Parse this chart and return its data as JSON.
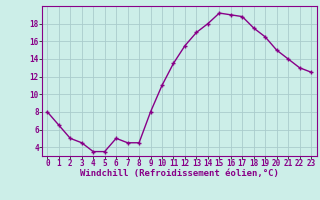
{
  "x": [
    0,
    1,
    2,
    3,
    4,
    5,
    6,
    7,
    8,
    9,
    10,
    11,
    12,
    13,
    14,
    15,
    16,
    17,
    18,
    19,
    20,
    21,
    22,
    23
  ],
  "y": [
    8,
    6.5,
    5,
    4.5,
    3.5,
    3.5,
    5,
    4.5,
    4.5,
    8,
    11,
    13.5,
    15.5,
    17,
    18,
    19.2,
    19,
    18.8,
    17.5,
    16.5,
    15,
    14,
    13,
    12.5
  ],
  "line_color": "#880088",
  "marker": "+",
  "bg_color": "#cceee8",
  "grid_color": "#aacccc",
  "xlabel": "Windchill (Refroidissement éolien,°C)",
  "font_color": "#880088",
  "xlim": [
    -0.5,
    23.5
  ],
  "ylim": [
    3,
    20
  ],
  "yticks": [
    4,
    6,
    8,
    10,
    12,
    14,
    16,
    18
  ],
  "xticks": [
    0,
    1,
    2,
    3,
    4,
    5,
    6,
    7,
    8,
    9,
    10,
    11,
    12,
    13,
    14,
    15,
    16,
    17,
    18,
    19,
    20,
    21,
    22,
    23
  ],
  "linewidth": 1.0,
  "markersize": 3.5,
  "tick_fontsize": 5.5,
  "xlabel_fontsize": 6.5
}
